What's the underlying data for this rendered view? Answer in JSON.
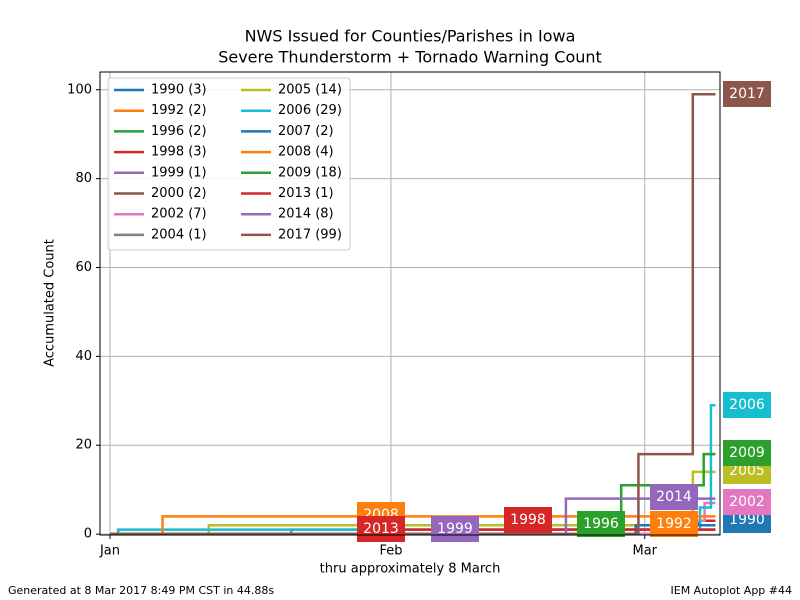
{
  "chart_data": {
    "type": "step",
    "title": "NWS Issued for Counties/Parishes in Iowa",
    "subtitle": "Severe Thunderstorm + Tornado Warning Count",
    "ylabel": "Accumulated Count",
    "xlabel": "thru approximately 8 March",
    "footer_left": "Generated at 8 Mar 2017 8:49 PM CST in 44.88s",
    "footer_right": "IEM Autoplot App #44",
    "xlim": [
      -1.1,
      67.3
    ],
    "xticks": [
      {
        "value": 0,
        "label": "Jan"
      },
      {
        "value": 31,
        "label": "Feb"
      },
      {
        "value": 59,
        "label": "Mar"
      }
    ],
    "ylim": [
      -0.2,
      104
    ],
    "yticks": [
      0,
      20,
      40,
      60,
      80,
      100
    ],
    "grid": true,
    "legend": "upper left",
    "series": [
      {
        "name": "1990 (3)",
        "label": "1990",
        "color": "#1f77b4",
        "x": [
          0,
          63,
          65,
          66.8
        ],
        "values": [
          0,
          2,
          3,
          3
        ]
      },
      {
        "name": "1992 (2)",
        "label": "1992",
        "color": "#ff7f0e",
        "x": [
          0,
          40,
          66.8
        ],
        "values": [
          0,
          2,
          2
        ]
      },
      {
        "name": "1996 (2)",
        "label": "1996",
        "color": "#2ca02c",
        "x": [
          0,
          61,
          66.8
        ],
        "values": [
          0,
          2,
          2
        ]
      },
      {
        "name": "1998 (3)",
        "label": "1998",
        "color": "#d62728",
        "x": [
          0,
          44,
          60,
          66.8
        ],
        "values": [
          0,
          1,
          3,
          3
        ]
      },
      {
        "name": "1999 (1)",
        "label": "1999",
        "color": "#9467bd",
        "x": [
          0,
          56,
          66.8
        ],
        "values": [
          0,
          1,
          1
        ]
      },
      {
        "name": "2000 (2)",
        "color": "#8c564b",
        "x": [
          0,
          58,
          66.8
        ],
        "values": [
          0,
          2,
          2
        ]
      },
      {
        "name": "2002 (7)",
        "label": "2002",
        "color": "#e377c2",
        "x": [
          0,
          64,
          65.6,
          66.8
        ],
        "values": [
          0,
          3,
          7,
          7
        ]
      },
      {
        "name": "2004 (1)",
        "color": "#7f7f7f",
        "x": [
          0,
          20,
          66.8
        ],
        "values": [
          0,
          1,
          1
        ]
      },
      {
        "name": "2005 (14)",
        "label": "2005",
        "color": "#bcbd22",
        "x": [
          0,
          10.9,
          64.3,
          66.8
        ],
        "values": [
          0,
          2,
          14,
          14
        ]
      },
      {
        "name": "2006 (29)",
        "label": "2006",
        "color": "#17becf",
        "x": [
          0,
          0.9,
          65.1,
          66.3,
          66.8
        ],
        "values": [
          0,
          1,
          6,
          29,
          29
        ]
      },
      {
        "name": "2007 (2)",
        "color": "#1f77b4",
        "x": [
          0,
          58,
          66.8
        ],
        "values": [
          0,
          2,
          2
        ]
      },
      {
        "name": "2008 (4)",
        "label": "2008",
        "color": "#ff7f0e",
        "x": [
          0,
          5.8,
          66.8
        ],
        "values": [
          0,
          4,
          4
        ]
      },
      {
        "name": "2009 (18)",
        "label": "2009",
        "color": "#2ca02c",
        "x": [
          0,
          56.4,
          65.5,
          66.8
        ],
        "values": [
          0,
          11,
          18,
          18
        ]
      },
      {
        "name": "2013 (1)",
        "label": "2013",
        "color": "#d62728",
        "x": [
          0,
          30,
          66.8
        ],
        "values": [
          0,
          1,
          1
        ]
      },
      {
        "name": "2014 (8)",
        "label": "2014",
        "color": "#9467bd",
        "x": [
          0,
          50.3,
          66.8
        ],
        "values": [
          0,
          8,
          8
        ]
      },
      {
        "name": "2017 (99)",
        "label": "2017",
        "color": "#8c564b",
        "x": [
          0,
          58.3,
          64.3,
          66.8
        ],
        "values": [
          0,
          18,
          99,
          99
        ]
      }
    ]
  }
}
